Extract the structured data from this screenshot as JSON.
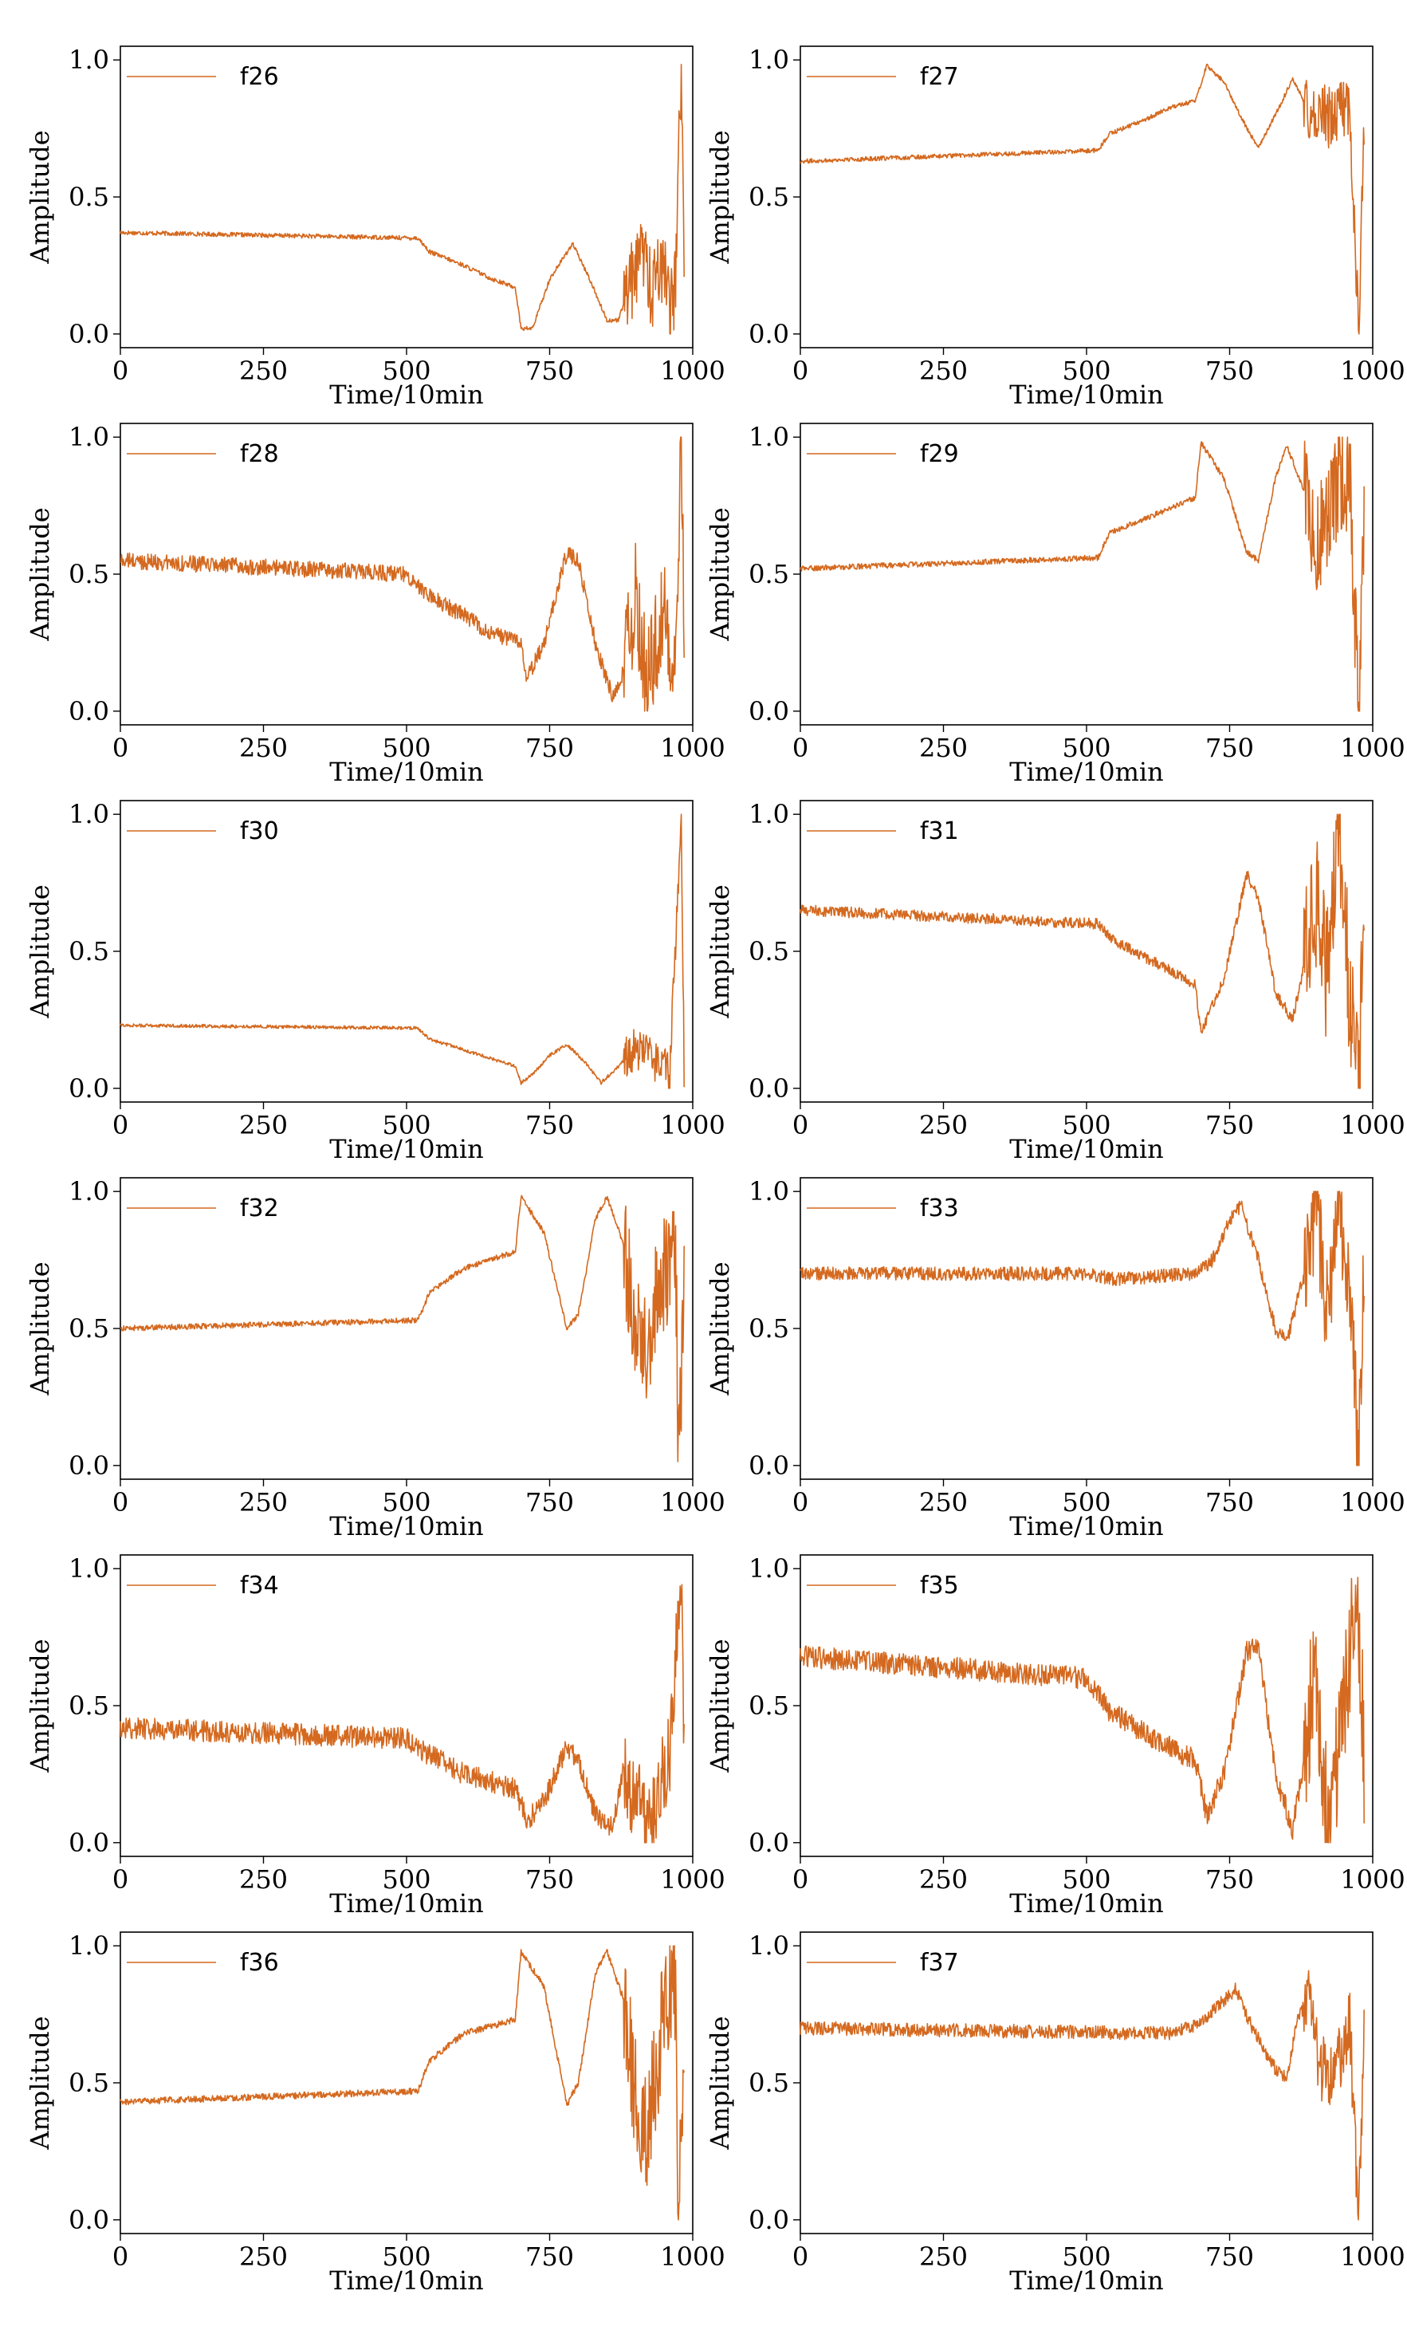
{
  "chart_data": [
    {
      "type": "line",
      "series": [
        {
          "name": "f26"
        }
      ],
      "xlabel": "Time/10min",
      "ylabel": "Amplitude",
      "xlim": [
        0,
        1000
      ],
      "ylim": [
        -0.05,
        1.05
      ],
      "xticks": [
        0,
        250,
        500,
        750,
        1000
      ],
      "yticks": [
        0.0,
        0.5,
        1.0
      ],
      "legend": "top-left",
      "grid": false,
      "color": "#d4691f",
      "profile": [
        [
          0,
          0.37
        ],
        [
          520,
          0.35
        ],
        [
          540,
          0.3
        ],
        [
          600,
          0.25
        ],
        [
          650,
          0.2
        ],
        [
          690,
          0.17
        ],
        [
          700,
          0.02
        ],
        [
          720,
          0.02
        ],
        [
          750,
          0.2
        ],
        [
          790,
          0.33
        ],
        [
          820,
          0.2
        ],
        [
          850,
          0.05
        ],
        [
          870,
          0.05
        ],
        [
          890,
          0.18
        ],
        [
          910,
          0.3
        ],
        [
          930,
          0.15
        ],
        [
          950,
          0.3
        ],
        [
          960,
          0.05
        ],
        [
          970,
          0.2
        ],
        [
          980,
          1.0
        ],
        [
          985,
          0.15
        ]
      ],
      "noise": 0.008,
      "osc_start": 880,
      "osc_amp": 0.15
    },
    {
      "type": "line",
      "series": [
        {
          "name": "f27"
        }
      ],
      "xlabel": "Time/10min",
      "ylabel": "Amplitude",
      "xlim": [
        0,
        1000
      ],
      "ylim": [
        -0.05,
        1.05
      ],
      "xticks": [
        0,
        250,
        500,
        750,
        1000
      ],
      "yticks": [
        0.0,
        0.5,
        1.0
      ],
      "legend": "top-left",
      "grid": false,
      "color": "#d4691f",
      "profile": [
        [
          0,
          0.63
        ],
        [
          520,
          0.67
        ],
        [
          540,
          0.73
        ],
        [
          600,
          0.78
        ],
        [
          650,
          0.83
        ],
        [
          690,
          0.85
        ],
        [
          710,
          0.98
        ],
        [
          740,
          0.92
        ],
        [
          780,
          0.75
        ],
        [
          800,
          0.68
        ],
        [
          830,
          0.8
        ],
        [
          860,
          0.93
        ],
        [
          880,
          0.85
        ],
        [
          900,
          0.78
        ],
        [
          930,
          0.8
        ],
        [
          960,
          0.85
        ],
        [
          975,
          0.0
        ],
        [
          985,
          0.8
        ]
      ],
      "noise": 0.008,
      "osc_start": 880,
      "osc_amp": 0.12
    },
    {
      "type": "line",
      "series": [
        {
          "name": "f28"
        }
      ],
      "xlabel": "Time/10min",
      "ylabel": "Amplitude",
      "xlim": [
        0,
        1000
      ],
      "ylim": [
        -0.05,
        1.05
      ],
      "xticks": [
        0,
        250,
        500,
        750,
        1000
      ],
      "yticks": [
        0.0,
        0.5,
        1.0
      ],
      "legend": "top-left",
      "grid": false,
      "color": "#d4691f",
      "profile": [
        [
          0,
          0.55
        ],
        [
          500,
          0.5
        ],
        [
          540,
          0.42
        ],
        [
          600,
          0.35
        ],
        [
          650,
          0.28
        ],
        [
          700,
          0.25
        ],
        [
          710,
          0.12
        ],
        [
          740,
          0.25
        ],
        [
          780,
          0.58
        ],
        [
          800,
          0.55
        ],
        [
          830,
          0.25
        ],
        [
          860,
          0.05
        ],
        [
          880,
          0.15
        ],
        [
          900,
          0.4
        ],
        [
          920,
          0.1
        ],
        [
          950,
          0.35
        ],
        [
          970,
          0.2
        ],
        [
          980,
          1.0
        ],
        [
          985,
          0.2
        ]
      ],
      "noise": 0.03,
      "osc_start": 880,
      "osc_amp": 0.2
    },
    {
      "type": "line",
      "series": [
        {
          "name": "f29"
        }
      ],
      "xlabel": "Time/10min",
      "ylabel": "Amplitude",
      "xlim": [
        0,
        1000
      ],
      "ylim": [
        -0.05,
        1.05
      ],
      "xticks": [
        0,
        250,
        500,
        750,
        1000
      ],
      "yticks": [
        0.0,
        0.5,
        1.0
      ],
      "legend": "top-left",
      "grid": false,
      "color": "#d4691f",
      "profile": [
        [
          0,
          0.52
        ],
        [
          520,
          0.56
        ],
        [
          540,
          0.65
        ],
        [
          600,
          0.7
        ],
        [
          690,
          0.78
        ],
        [
          700,
          0.98
        ],
        [
          740,
          0.85
        ],
        [
          780,
          0.58
        ],
        [
          800,
          0.55
        ],
        [
          830,
          0.85
        ],
        [
          850,
          0.97
        ],
        [
          880,
          0.8
        ],
        [
          900,
          0.6
        ],
        [
          930,
          0.8
        ],
        [
          960,
          0.85
        ],
        [
          975,
          0.0
        ],
        [
          985,
          0.7
        ]
      ],
      "noise": 0.01,
      "osc_start": 880,
      "osc_amp": 0.2
    },
    {
      "type": "line",
      "series": [
        {
          "name": "f30"
        }
      ],
      "xlabel": "Time/10min",
      "ylabel": "Amplitude",
      "xlim": [
        0,
        1000
      ],
      "ylim": [
        -0.05,
        1.05
      ],
      "xticks": [
        0,
        250,
        500,
        750,
        1000
      ],
      "yticks": [
        0.0,
        0.5,
        1.0
      ],
      "legend": "top-left",
      "grid": false,
      "color": "#d4691f",
      "profile": [
        [
          0,
          0.23
        ],
        [
          520,
          0.22
        ],
        [
          540,
          0.18
        ],
        [
          600,
          0.14
        ],
        [
          690,
          0.08
        ],
        [
          700,
          0.02
        ],
        [
          720,
          0.05
        ],
        [
          750,
          0.12
        ],
        [
          780,
          0.16
        ],
        [
          810,
          0.1
        ],
        [
          840,
          0.02
        ],
        [
          870,
          0.08
        ],
        [
          900,
          0.15
        ],
        [
          930,
          0.12
        ],
        [
          960,
          0.05
        ],
        [
          980,
          1.0
        ],
        [
          985,
          0.05
        ]
      ],
      "noise": 0.006,
      "osc_start": 880,
      "osc_amp": 0.08
    },
    {
      "type": "line",
      "series": [
        {
          "name": "f31"
        }
      ],
      "xlabel": "Time/10min",
      "ylabel": "Amplitude",
      "xlim": [
        0,
        1000
      ],
      "ylim": [
        -0.05,
        1.05
      ],
      "xticks": [
        0,
        250,
        500,
        750,
        1000
      ],
      "yticks": [
        0.0,
        0.5,
        1.0
      ],
      "legend": "top-left",
      "grid": false,
      "color": "#d4691f",
      "profile": [
        [
          0,
          0.65
        ],
        [
          520,
          0.6
        ],
        [
          540,
          0.55
        ],
        [
          600,
          0.48
        ],
        [
          690,
          0.38
        ],
        [
          700,
          0.2
        ],
        [
          740,
          0.4
        ],
        [
          780,
          0.78
        ],
        [
          800,
          0.7
        ],
        [
          830,
          0.35
        ],
        [
          860,
          0.25
        ],
        [
          880,
          0.45
        ],
        [
          900,
          0.7
        ],
        [
          920,
          0.4
        ],
        [
          940,
          1.0
        ],
        [
          960,
          0.35
        ],
        [
          975,
          0.0
        ],
        [
          985,
          0.55
        ]
      ],
      "noise": 0.02,
      "osc_start": 880,
      "osc_amp": 0.25
    },
    {
      "type": "line",
      "series": [
        {
          "name": "f32"
        }
      ],
      "xlabel": "Time/10min",
      "ylabel": "Amplitude",
      "xlim": [
        0,
        1000
      ],
      "ylim": [
        -0.05,
        1.05
      ],
      "xticks": [
        0,
        250,
        500,
        750,
        1000
      ],
      "yticks": [
        0.0,
        0.5,
        1.0
      ],
      "legend": "top-left",
      "grid": false,
      "color": "#d4691f",
      "profile": [
        [
          0,
          0.5
        ],
        [
          520,
          0.53
        ],
        [
          540,
          0.63
        ],
        [
          600,
          0.72
        ],
        [
          690,
          0.78
        ],
        [
          700,
          0.98
        ],
        [
          740,
          0.85
        ],
        [
          780,
          0.5
        ],
        [
          800,
          0.55
        ],
        [
          830,
          0.9
        ],
        [
          850,
          0.98
        ],
        [
          880,
          0.8
        ],
        [
          900,
          0.55
        ],
        [
          920,
          0.45
        ],
        [
          950,
          0.7
        ],
        [
          970,
          0.8
        ],
        [
          975,
          0.0
        ],
        [
          985,
          0.6
        ]
      ],
      "noise": 0.01,
      "osc_start": 880,
      "osc_amp": 0.22
    },
    {
      "type": "line",
      "series": [
        {
          "name": "f33"
        }
      ],
      "xlabel": "Time/10min",
      "ylabel": "Amplitude",
      "xlim": [
        0,
        1000
      ],
      "ylim": [
        -0.05,
        1.05
      ],
      "xticks": [
        0,
        250,
        500,
        750,
        1000
      ],
      "yticks": [
        0.0,
        0.5,
        1.0
      ],
      "legend": "top-left",
      "grid": false,
      "color": "#d4691f",
      "profile": [
        [
          0,
          0.7
        ],
        [
          500,
          0.7
        ],
        [
          550,
          0.68
        ],
        [
          690,
          0.7
        ],
        [
          720,
          0.75
        ],
        [
          750,
          0.9
        ],
        [
          770,
          0.95
        ],
        [
          800,
          0.75
        ],
        [
          830,
          0.5
        ],
        [
          850,
          0.45
        ],
        [
          880,
          0.7
        ],
        [
          900,
          0.95
        ],
        [
          920,
          0.6
        ],
        [
          940,
          0.95
        ],
        [
          960,
          0.65
        ],
        [
          975,
          0.0
        ],
        [
          985,
          0.7
        ]
      ],
      "noise": 0.025,
      "osc_start": 880,
      "osc_amp": 0.2
    },
    {
      "type": "line",
      "series": [
        {
          "name": "f34"
        }
      ],
      "xlabel": "Time/10min",
      "ylabel": "Amplitude",
      "xlim": [
        0,
        1000
      ],
      "ylim": [
        -0.05,
        1.05
      ],
      "xticks": [
        0,
        250,
        500,
        750,
        1000
      ],
      "yticks": [
        0.0,
        0.5,
        1.0
      ],
      "legend": "top-left",
      "grid": false,
      "color": "#d4691f",
      "profile": [
        [
          0,
          0.42
        ],
        [
          500,
          0.38
        ],
        [
          540,
          0.32
        ],
        [
          600,
          0.25
        ],
        [
          690,
          0.2
        ],
        [
          710,
          0.08
        ],
        [
          740,
          0.15
        ],
        [
          780,
          0.35
        ],
        [
          800,
          0.3
        ],
        [
          830,
          0.1
        ],
        [
          860,
          0.05
        ],
        [
          880,
          0.28
        ],
        [
          900,
          0.15
        ],
        [
          930,
          0.05
        ],
        [
          960,
          0.35
        ],
        [
          980,
          1.0
        ],
        [
          985,
          0.35
        ]
      ],
      "noise": 0.04,
      "osc_start": 880,
      "osc_amp": 0.15
    },
    {
      "type": "line",
      "series": [
        {
          "name": "f35"
        }
      ],
      "xlabel": "Time/10min",
      "ylabel": "Amplitude",
      "xlim": [
        0,
        1000
      ],
      "ylim": [
        -0.05,
        1.05
      ],
      "xticks": [
        0,
        250,
        500,
        750,
        1000
      ],
      "yticks": [
        0.0,
        0.5,
        1.0
      ],
      "legend": "top-left",
      "grid": false,
      "color": "#d4691f",
      "profile": [
        [
          0,
          0.68
        ],
        [
          500,
          0.6
        ],
        [
          540,
          0.48
        ],
        [
          600,
          0.4
        ],
        [
          690,
          0.3
        ],
        [
          710,
          0.1
        ],
        [
          740,
          0.25
        ],
        [
          780,
          0.7
        ],
        [
          800,
          0.72
        ],
        [
          830,
          0.25
        ],
        [
          860,
          0.05
        ],
        [
          880,
          0.3
        ],
        [
          900,
          0.65
        ],
        [
          920,
          0.1
        ],
        [
          950,
          0.5
        ],
        [
          970,
          0.95
        ],
        [
          985,
          0.3
        ]
      ],
      "noise": 0.04,
      "osc_start": 880,
      "osc_amp": 0.25
    },
    {
      "type": "line",
      "series": [
        {
          "name": "f36"
        }
      ],
      "xlabel": "Time/10min",
      "ylabel": "Amplitude",
      "xlim": [
        0,
        1000
      ],
      "ylim": [
        -0.05,
        1.05
      ],
      "xticks": [
        0,
        250,
        500,
        750,
        1000
      ],
      "yticks": [
        0.0,
        0.5,
        1.0
      ],
      "legend": "top-left",
      "grid": false,
      "color": "#d4691f",
      "profile": [
        [
          0,
          0.43
        ],
        [
          520,
          0.47
        ],
        [
          540,
          0.58
        ],
        [
          600,
          0.68
        ],
        [
          690,
          0.73
        ],
        [
          700,
          0.98
        ],
        [
          740,
          0.85
        ],
        [
          780,
          0.42
        ],
        [
          800,
          0.5
        ],
        [
          830,
          0.9
        ],
        [
          850,
          0.98
        ],
        [
          880,
          0.8
        ],
        [
          900,
          0.45
        ],
        [
          920,
          0.3
        ],
        [
          950,
          0.75
        ],
        [
          970,
          0.85
        ],
        [
          975,
          0.0
        ],
        [
          985,
          0.55
        ]
      ],
      "noise": 0.012,
      "osc_start": 880,
      "osc_amp": 0.22
    },
    {
      "type": "line",
      "series": [
        {
          "name": "f37"
        }
      ],
      "xlabel": "Time/10min",
      "ylabel": "Amplitude",
      "xlim": [
        0,
        1000
      ],
      "ylim": [
        -0.05,
        1.05
      ],
      "xticks": [
        0,
        250,
        500,
        750,
        1000
      ],
      "yticks": [
        0.0,
        0.5,
        1.0
      ],
      "legend": "top-left",
      "grid": false,
      "color": "#d4691f",
      "profile": [
        [
          0,
          0.7
        ],
        [
          650,
          0.68
        ],
        [
          700,
          0.72
        ],
        [
          740,
          0.8
        ],
        [
          760,
          0.84
        ],
        [
          790,
          0.7
        ],
        [
          830,
          0.55
        ],
        [
          850,
          0.52
        ],
        [
          870,
          0.75
        ],
        [
          890,
          0.8
        ],
        [
          910,
          0.55
        ],
        [
          930,
          0.5
        ],
        [
          960,
          0.7
        ],
        [
          975,
          0.0
        ],
        [
          985,
          0.7
        ]
      ],
      "noise": 0.025,
      "osc_start": 880,
      "osc_amp": 0.12
    }
  ]
}
